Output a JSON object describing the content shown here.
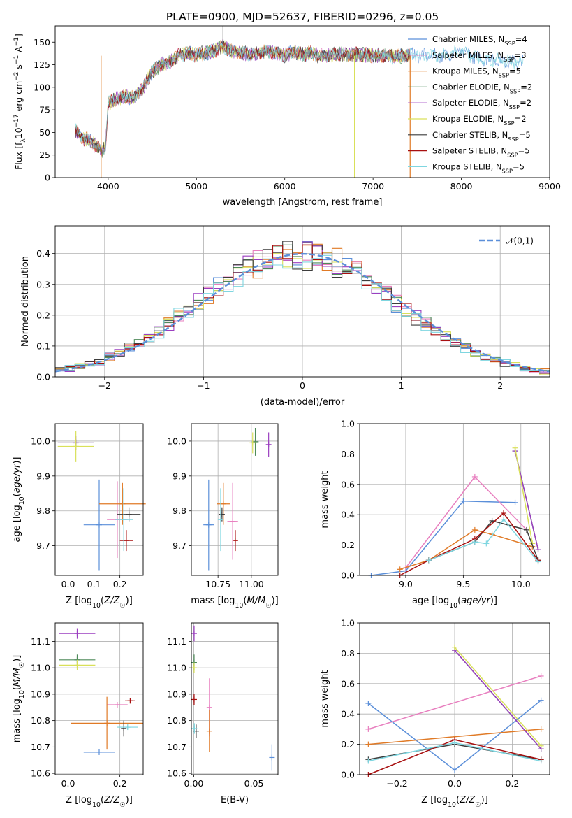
{
  "colors": [
    "#5b8fd9",
    "#e87fbf",
    "#e07a26",
    "#4e8a5a",
    "#9b3fc0",
    "#d9e05a",
    "#3c3c3c",
    "#a81010",
    "#7fd6e0"
  ],
  "legend_entries": [
    "Chabrier MILES, N_SSP=4",
    "Salpeter MILES, N_SSP=3",
    "Kroupa MILES, N_SSP=5",
    "Chabrier ELODIE, N_SSP=2",
    "Salpeter ELODIE, N_SSP=2",
    "Kroupa ELODIE, N_SSP=2",
    "Chabrier STELIB, N_SSP=5",
    "Salpeter STELIB, N_SSP=5",
    "Kroupa STELIB, N_SSP=5"
  ],
  "chart_data": [
    {
      "type": "line",
      "id": "spectrum",
      "title": "PLATE=0900, MJD=52637, FIBERID=0296, z=0.05",
      "xlabel": "wavelength [Angstrom, rest frame]",
      "ylabel": "Flux [f_λ 10^-17 erg cm^-2 s^-1 A^-1]",
      "xlim": [
        3400,
        9000
      ],
      "ylim": [
        0,
        168
      ],
      "xticks": [
        4000,
        5000,
        6000,
        7000,
        8000,
        9000
      ],
      "yticks": [
        0,
        25,
        50,
        75,
        100,
        125,
        150
      ],
      "continuum": [
        [
          3600,
          55
        ],
        [
          3700,
          45
        ],
        [
          3800,
          40
        ],
        [
          3900,
          33
        ],
        [
          3930,
          28
        ],
        [
          3970,
          35
        ],
        [
          4000,
          82
        ],
        [
          4100,
          88
        ],
        [
          4200,
          90
        ],
        [
          4300,
          88
        ],
        [
          4400,
          100
        ],
        [
          4500,
          118
        ],
        [
          4600,
          125
        ],
        [
          4700,
          128
        ],
        [
          4800,
          135
        ],
        [
          4900,
          138
        ],
        [
          5000,
          136
        ],
        [
          5100,
          138
        ],
        [
          5200,
          140
        ],
        [
          5300,
          145
        ],
        [
          5400,
          140
        ],
        [
          5500,
          138
        ],
        [
          5600,
          137
        ],
        [
          5700,
          138
        ],
        [
          5800,
          140
        ],
        [
          5900,
          138
        ],
        [
          6000,
          135
        ],
        [
          6100,
          140
        ],
        [
          6200,
          136
        ],
        [
          6300,
          138
        ],
        [
          6400,
          134
        ],
        [
          6500,
          136
        ],
        [
          6600,
          137
        ],
        [
          6700,
          136
        ],
        [
          6800,
          137
        ],
        [
          6900,
          136
        ],
        [
          7000,
          135
        ],
        [
          7100,
          136
        ],
        [
          7200,
          134
        ],
        [
          7300,
          134
        ],
        [
          7400,
          136
        ],
        [
          7600,
          135
        ],
        [
          7800,
          135
        ],
        [
          8000,
          140
        ],
        [
          8200,
          132
        ],
        [
          8400,
          130
        ],
        [
          8600,
          128
        ],
        [
          8700,
          128
        ]
      ],
      "legend": "upper right",
      "grid": false
    },
    {
      "type": "histogram",
      "id": "residuals",
      "xlabel": "(data-model)/error",
      "ylabel": "Normed distribution",
      "xlim": [
        -2.5,
        2.5
      ],
      "ylim": [
        0,
        0.49
      ],
      "xticks": [
        -2,
        -1,
        0,
        1,
        2
      ],
      "yticks": [
        0.0,
        0.1,
        0.2,
        0.3,
        0.4
      ],
      "bin_width": 0.1,
      "grid": true,
      "reference_curve": "𝒩(0,1)",
      "legend": "upper right"
    },
    {
      "type": "scatter",
      "id": "z-age",
      "xlabel": "Z [log10(Z/Z☉)]",
      "ylabel": "age  [log10(age/yr)]",
      "xlim": [
        -0.05,
        0.29
      ],
      "ylim": [
        9.615,
        10.05
      ],
      "xticks": [
        0.0,
        0.1,
        0.2
      ],
      "yticks": [
        9.7,
        9.8,
        9.9,
        10.0
      ],
      "grid": true,
      "points": [
        {
          "x": 0.12,
          "y": 9.76,
          "xerr": 0.06,
          "yerr": 0.13
        },
        {
          "x": 0.19,
          "y": 9.775,
          "xerr": 0.04,
          "yerr": 0.11
        },
        {
          "x": 0.21,
          "y": 9.82,
          "xerr": 0.09,
          "yerr": 0.06
        },
        {
          "x": 0.03,
          "y": 9.995,
          "xerr": 0.07,
          "yerr": 0.01
        },
        {
          "x": 0.03,
          "y": 9.995,
          "xerr": 0.07,
          "yerr": 0.02
        },
        {
          "x": 0.03,
          "y": 9.985,
          "xerr": 0.07,
          "yerr": 0.045
        },
        {
          "x": 0.235,
          "y": 9.79,
          "xerr": 0.045,
          "yerr": 0.02
        },
        {
          "x": 0.225,
          "y": 9.715,
          "xerr": 0.025,
          "yerr": 0.03
        },
        {
          "x": 0.215,
          "y": 9.775,
          "xerr": 0.035,
          "yerr": 0.09
        }
      ]
    },
    {
      "type": "scatter",
      "id": "mass-age",
      "xlabel": "mass [log10(M/M☉)]",
      "ylabel": "",
      "xlim": [
        10.55,
        11.2
      ],
      "ylim": [
        9.615,
        10.05
      ],
      "xticks": [
        10.75,
        11.0
      ],
      "yticks": [
        9.7,
        9.8,
        9.9,
        10.0
      ],
      "grid": true,
      "points": [
        {
          "x": 10.68,
          "y": 9.76,
          "xerr": 0.04,
          "yerr": 0.13
        },
        {
          "x": 10.86,
          "y": 9.77,
          "xerr": 0.04,
          "yerr": 0.11
        },
        {
          "x": 10.79,
          "y": 9.82,
          "xerr": 0.05,
          "yerr": 0.06
        },
        {
          "x": 11.03,
          "y": 9.998,
          "xerr": 0.025,
          "yerr": 0.04
        },
        {
          "x": 11.13,
          "y": 9.99,
          "xerr": 0.02,
          "yerr": 0.035
        },
        {
          "x": 11.01,
          "y": 9.995,
          "xerr": 0.03,
          "yerr": 0.03
        },
        {
          "x": 10.78,
          "y": 9.79,
          "xerr": 0.02,
          "yerr": 0.02
        },
        {
          "x": 10.88,
          "y": 9.715,
          "xerr": 0.01,
          "yerr": 0.03
        },
        {
          "x": 10.77,
          "y": 9.775,
          "xerr": 0.01,
          "yerr": 0.09
        }
      ]
    },
    {
      "type": "line",
      "id": "age-massweight",
      "xlabel": "age  [log10(age/yr)]",
      "ylabel": "mass weight",
      "xlim": [
        8.6,
        10.25
      ],
      "ylim": [
        0,
        1.0
      ],
      "xticks": [
        9.0,
        9.5,
        10.0
      ],
      "yticks": [
        0.0,
        0.2,
        0.4,
        0.6,
        0.8,
        1.0
      ],
      "grid": true,
      "series": [
        {
          "x": [
            8.7,
            9.0,
            9.5,
            9.95
          ],
          "y": [
            0.0,
            0.03,
            0.49,
            0.48
          ]
        },
        {
          "x": [
            9.0,
            9.6,
            10.05
          ],
          "y": [
            0.05,
            0.65,
            0.3
          ]
        },
        {
          "x": [
            8.95,
            9.2,
            9.6,
            9.75,
            10.1
          ],
          "y": [
            0.04,
            0.1,
            0.3,
            0.27,
            0.19
          ]
        },
        {
          "x": [
            9.95,
            10.15
          ],
          "y": [
            0.82,
            0.17
          ]
        },
        {
          "x": [
            9.95,
            10.15
          ],
          "y": [
            0.82,
            0.17
          ]
        },
        {
          "x": [
            9.95,
            10.1
          ],
          "y": [
            0.84,
            0.21
          ]
        },
        {
          "x": [
            9.2,
            9.6,
            9.75,
            10.05,
            10.15
          ],
          "y": [
            0.1,
            0.22,
            0.36,
            0.3,
            0.1
          ]
        },
        {
          "x": [
            8.95,
            9.2,
            9.6,
            9.85,
            10.15
          ],
          "y": [
            0.0,
            0.1,
            0.24,
            0.41,
            0.1
          ]
        },
        {
          "x": [
            9.2,
            9.6,
            9.7,
            9.85,
            10.15
          ],
          "y": [
            0.1,
            0.22,
            0.21,
            0.37,
            0.09
          ]
        }
      ]
    },
    {
      "type": "scatter",
      "id": "z-mass",
      "xlabel": "Z [log10(Z/Z☉)]",
      "ylabel": "mass [log10(M/M☉)]",
      "xlim": [
        -0.05,
        0.29
      ],
      "ylim": [
        10.595,
        11.17
      ],
      "xticks": [
        0.0,
        0.2
      ],
      "yticks": [
        10.6,
        10.7,
        10.8,
        10.9,
        11.0,
        11.1
      ],
      "grid": true,
      "points": [
        {
          "x": 0.12,
          "y": 10.68,
          "xerr": 0.06,
          "yerr": 0.0
        },
        {
          "x": 0.19,
          "y": 10.86,
          "xerr": 0.04,
          "yerr": 0.0
        },
        {
          "x": 0.15,
          "y": 10.79,
          "xerr": 0.14,
          "yerr": 0.1
        },
        {
          "x": 0.035,
          "y": 11.03,
          "xerr": 0.07,
          "yerr": 0.02
        },
        {
          "x": 0.035,
          "y": 11.13,
          "xerr": 0.07,
          "yerr": 0.02
        },
        {
          "x": 0.035,
          "y": 11.01,
          "xerr": 0.07,
          "yerr": 0.02
        },
        {
          "x": 0.215,
          "y": 10.77,
          "xerr": 0.01,
          "yerr": 0.03
        },
        {
          "x": 0.24,
          "y": 10.875,
          "xerr": 0.02,
          "yerr": 0.01
        },
        {
          "x": 0.23,
          "y": 10.775,
          "xerr": 0.04,
          "yerr": 0.005
        }
      ]
    },
    {
      "type": "scatter",
      "id": "ebv-mass",
      "xlabel": "E(B-V)",
      "ylabel": "",
      "xlim": [
        -0.002,
        0.07
      ],
      "ylim": [
        10.595,
        11.17
      ],
      "xticks": [
        0.0,
        0.05
      ],
      "yticks": [
        10.6,
        10.7,
        10.8,
        10.9,
        11.0,
        11.1
      ],
      "grid": true,
      "points": [
        {
          "x": 0.065,
          "y": 10.66,
          "xerr": 0.0,
          "yerr": 0.05
        },
        {
          "x": 0.013,
          "y": 10.85,
          "xerr": 0.0,
          "yerr": 0.11
        },
        {
          "x": 0.013,
          "y": 10.76,
          "xerr": 0.0,
          "yerr": 0.08
        },
        {
          "x": 0.0003,
          "y": 11.02,
          "xerr": 0.0,
          "yerr": 0.03
        },
        {
          "x": 0.0003,
          "y": 11.13,
          "xerr": 0.0,
          "yerr": 0.03
        },
        {
          "x": 0.0003,
          "y": 11.0,
          "xerr": 0.0,
          "yerr": 0.02
        },
        {
          "x": 0.002,
          "y": 10.76,
          "xerr": 0.0,
          "yerr": 0.025
        },
        {
          "x": 0.0003,
          "y": 10.88,
          "xerr": 0.0,
          "yerr": 0.02
        },
        {
          "x": 0.0005,
          "y": 10.77,
          "xerr": 0.0,
          "yerr": 0.02
        }
      ]
    },
    {
      "type": "line",
      "id": "z-massweight",
      "xlabel": "Z [log10(Z/Z☉)]",
      "ylabel": "mass weight",
      "xlim": [
        -0.33,
        0.33
      ],
      "ylim": [
        0,
        1.0
      ],
      "xticks": [
        -0.2,
        0.0,
        0.2
      ],
      "yticks": [
        0.0,
        0.2,
        0.4,
        0.6,
        0.8,
        1.0
      ],
      "grid": true,
      "series": [
        {
          "x": [
            -0.3,
            0.0,
            0.3
          ],
          "y": [
            0.47,
            0.03,
            0.49
          ]
        },
        {
          "x": [
            -0.3,
            0.3
          ],
          "y": [
            0.3,
            0.65
          ]
        },
        {
          "x": [
            -0.3,
            0.3
          ],
          "y": [
            0.2,
            0.3
          ]
        },
        {
          "x": [
            0.0,
            0.3
          ],
          "y": [
            0.82,
            0.17
          ]
        },
        {
          "x": [
            0.0,
            0.3
          ],
          "y": [
            0.82,
            0.17
          ]
        },
        {
          "x": [
            0.0,
            0.3
          ],
          "y": [
            0.84,
            0.19
          ]
        },
        {
          "x": [
            -0.3,
            0.0,
            0.3
          ],
          "y": [
            0.1,
            0.2,
            0.1
          ]
        },
        {
          "x": [
            -0.3,
            0.0,
            0.3
          ],
          "y": [
            0.0,
            0.23,
            0.1
          ]
        },
        {
          "x": [
            -0.3,
            0.0,
            0.3
          ],
          "y": [
            0.09,
            0.21,
            0.09
          ]
        }
      ]
    }
  ]
}
